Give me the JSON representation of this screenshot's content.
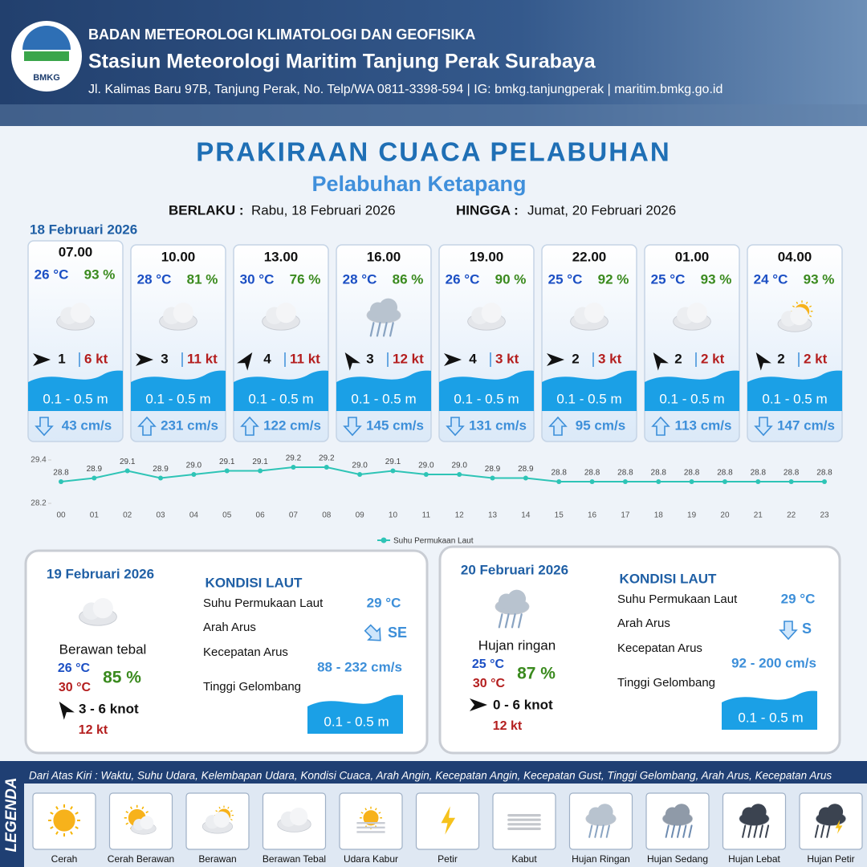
{
  "header": {
    "logo_text": "BMKG",
    "agency": "BADAN METEOROLOGI KLIMATOLOGI DAN GEOFISIKA",
    "station": "Stasiun Meteorologi Maritim Tanjung Perak Surabaya",
    "address": "Jl. Kalimas Baru 97B, Tanjung Perak, No. Telp/WA 0811-3398-594 | IG: bmkg.tanjungperak | maritim.bmkg.go.id"
  },
  "title": "PRAKIRAAN CUACA PELABUHAN",
  "subtitle": "Pelabuhan Ketapang",
  "validity": {
    "from_label": "BERLAKU :",
    "from": "Rabu, 18 Februari 2026",
    "to_label": "HINGGA :",
    "to": "Jumat, 20 Februari 2026"
  },
  "day1": {
    "date": "18 Februari 2026",
    "cards": [
      {
        "time": "07.00",
        "temp": "26 °C",
        "humidity": "93 %",
        "wind": "1",
        "gust": "6 kt",
        "wave": "0.1 - 0.5 m",
        "current": "43 cm/s"
      },
      {
        "time": "10.00",
        "temp": "28 °C",
        "humidity": "81 %",
        "wind": "3",
        "gust": "11 kt",
        "wave": "0.1 - 0.5 m",
        "current": "231 cm/s"
      },
      {
        "time": "13.00",
        "temp": "30 °C",
        "humidity": "76 %",
        "wind": "4",
        "gust": "11 kt",
        "wave": "0.1 - 0.5 m",
        "current": "122 cm/s"
      },
      {
        "time": "16.00",
        "temp": "28 °C",
        "humidity": "86 %",
        "wind": "3",
        "gust": "12 kt",
        "wave": "0.1 - 0.5 m",
        "current": "145 cm/s"
      },
      {
        "time": "19.00",
        "temp": "26 °C",
        "humidity": "90 %",
        "wind": "4",
        "gust": "3 kt",
        "wave": "0.1 - 0.5 m",
        "current": "131 cm/s"
      },
      {
        "time": "22.00",
        "temp": "25 °C",
        "humidity": "92 %",
        "wind": "2",
        "gust": "3 kt",
        "wave": "0.1 - 0.5 m",
        "current": "95 cm/s"
      },
      {
        "time": "01.00",
        "temp": "25 °C",
        "humidity": "93 %",
        "wind": "2",
        "gust": "2 kt",
        "wave": "0.1 - 0.5 m",
        "current": "113 cm/s"
      },
      {
        "time": "04.00",
        "temp": "24 °C",
        "humidity": "93 %",
        "wind": "2",
        "gust": "2 kt",
        "wave": "0.1 - 0.5 m",
        "current": "147 cm/s"
      }
    ]
  },
  "chart_data": {
    "type": "line",
    "categories": [
      "00",
      "01",
      "02",
      "03",
      "04",
      "05",
      "06",
      "07",
      "08",
      "09",
      "10",
      "11",
      "12",
      "13",
      "14",
      "15",
      "16",
      "17",
      "18",
      "19",
      "20",
      "21",
      "22",
      "23"
    ],
    "series": [
      {
        "name": "Suhu Permukaan Laut",
        "color": "#2ec4b6",
        "values": [
          28.8,
          28.9,
          29.1,
          28.9,
          29.0,
          29.1,
          29.1,
          29.2,
          29.2,
          29.0,
          29.1,
          29.0,
          29.0,
          28.9,
          28.9,
          28.8,
          28.8,
          28.8,
          28.8,
          28.8,
          28.8,
          28.8,
          28.8,
          28.8
        ],
        "value_labels": [
          "28.8",
          "28.9",
          "29.1",
          "28.9",
          "29.0",
          "29.1",
          "29.1",
          "29.2",
          "29.2",
          "29.0",
          "29.1",
          "29.0",
          "29.0",
          "28.9",
          "28.9",
          "28.8",
          "28.8",
          "28.8",
          "28.8",
          "28.8",
          "28.8",
          "28.8",
          "28.8",
          "28.8"
        ]
      }
    ],
    "ylim": [
      28.2,
      29.4
    ],
    "yticks": [
      28.2,
      29.4
    ]
  },
  "day2": {
    "date": "19 Februari 2026",
    "condition": "Berawan tebal",
    "temp_min": "26 °C",
    "temp_max": "30 °C",
    "humidity": "85 %",
    "wind": "3  - 6 knot",
    "gust": "12 kt",
    "sea_title": "KONDISI LAUT",
    "sst_label": "Suhu Permukaan Laut",
    "sst": "29 °C",
    "current_dir_label": "Arah Arus",
    "current_dir": "SE",
    "current_speed_label": "Kecepatan Arus",
    "current_speed": "88  - 232 cm/s",
    "wave_label": "Tinggi Gelombang",
    "wave": "0.1 - 0.5 m"
  },
  "day3": {
    "date": "20 Februari 2026",
    "condition": "Hujan ringan",
    "temp_min": "25 °C",
    "temp_max": "30 °C",
    "humidity": "87 %",
    "wind": "0  - 6 knot",
    "gust": "12 kt",
    "sea_title": "KONDISI LAUT",
    "sst_label": "Suhu Permukaan Laut",
    "sst": "29 °C",
    "current_dir_label": "Arah Arus",
    "current_dir": "S",
    "current_speed_label": "Kecepatan Arus",
    "current_speed": "92 - 200 cm/s",
    "wave_label": "Tinggi Gelombang",
    "wave": "0.1 - 0.5 m"
  },
  "legend": {
    "title": "LEGENDA",
    "description": "Dari Atas Kiri : Waktu, Suhu Udara, Kelembapan Udara, Kondisi Cuaca, Arah Angin, Kecepatan Angin, Kecepatan Gust, Tinggi Gelombang, Arah Arus, Kecepatan Arus",
    "items": [
      "Cerah",
      "Cerah Berawan",
      "Berawan",
      "Berawan Tebal",
      "Udara Kabur",
      "Petir",
      "Kabut",
      "Hujan Ringan",
      "Hujan Sedang",
      "Hujan Lebat",
      "Hujan Petir"
    ]
  }
}
